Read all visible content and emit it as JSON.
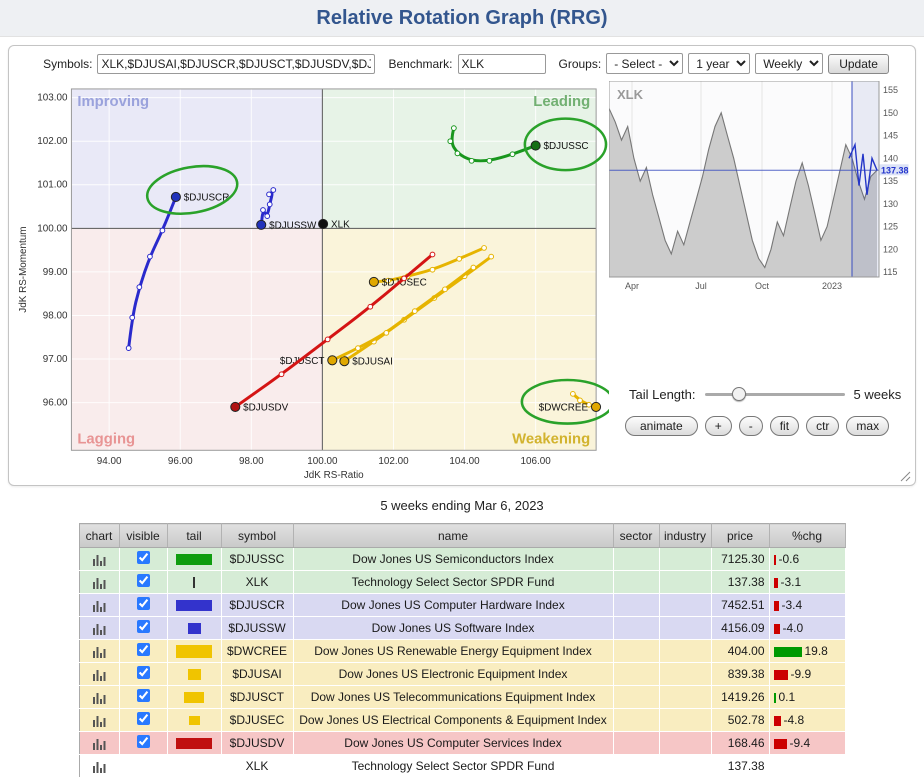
{
  "page": {
    "title": "Relative Rotation Graph (RRG)"
  },
  "toolbar": {
    "symbols_label": "Symbols:",
    "symbols_value": "XLK,$DJUSAI,$DJUSCR,$DJUSCT,$DJUSDV,$DJ",
    "benchmark_label": "Benchmark:",
    "benchmark_value": "XLK",
    "groups_label": "Groups:",
    "groups_value": "- Select -",
    "period_value": "1 year",
    "freq_value": "Weekly",
    "update_label": "Update"
  },
  "controls": {
    "tail_length_label": "Tail Length:",
    "tail_length_value": "5 weeks",
    "tail_slider_pos": 22,
    "buttons": [
      "animate",
      "+",
      "-",
      "fit",
      "ctr",
      "max"
    ]
  },
  "caption": "5 weeks ending Mar 6, 2023",
  "chart_data": [
    {
      "type": "scatter",
      "title": "Relative Rotation Graph",
      "xlabel": "JdK RS-Ratio",
      "ylabel": "JdK RS-Momentum",
      "xlim": [
        92.94,
        107.7
      ],
      "ylim": [
        94.9,
        103.2
      ],
      "x_ticks": [
        94,
        96,
        98,
        100,
        102,
        104,
        106
      ],
      "y_ticks": [
        96,
        97,
        98,
        99,
        100,
        101,
        102,
        103
      ],
      "quadrants": [
        {
          "name": "Improving",
          "bg": "#e9e9f7",
          "label_color": "#9aa2dc"
        },
        {
          "name": "Leading",
          "bg": "#e7f3e7",
          "label_color": "#72b072"
        },
        {
          "name": "Lagging",
          "bg": "#f9ecec",
          "label_color": "#e89494"
        },
        {
          "name": "Weakening",
          "bg": "#faf4da",
          "label_color": "#d2b32e"
        }
      ],
      "series": [
        {
          "symbol": "$DJUSSC",
          "color": "#18961d",
          "dot_color": "#156f15",
          "label_side": "right",
          "points": [
            [
              103.7,
              102.3
            ],
            [
              103.6,
              102.0
            ],
            [
              103.8,
              101.72
            ],
            [
              104.2,
              101.55
            ],
            [
              104.7,
              101.55
            ],
            [
              105.35,
              101.7
            ],
            [
              106.0,
              101.9
            ]
          ]
        },
        {
          "symbol": "XLK",
          "color": "#111111",
          "dot_color": "#111111",
          "label_side": "right",
          "points": [
            [
              100.02,
              100.1
            ]
          ]
        },
        {
          "symbol": "$DJUSCR",
          "color": "#2a2acc",
          "dot_color": "#2233bb",
          "label_side": "right",
          "points": [
            [
              94.55,
              97.25
            ],
            [
              94.65,
              97.95
            ],
            [
              94.85,
              98.65
            ],
            [
              95.15,
              99.35
            ],
            [
              95.5,
              99.95
            ],
            [
              95.88,
              100.72
            ]
          ]
        },
        {
          "symbol": "$DJUSSW",
          "color": "#2a2acc",
          "dot_color": "#2233bb",
          "label_side": "right",
          "points": [
            [
              98.5,
              100.78
            ],
            [
              98.62,
              100.88
            ],
            [
              98.52,
              100.55
            ],
            [
              98.45,
              100.28
            ],
            [
              98.33,
              100.42
            ],
            [
              98.28,
              100.08
            ]
          ]
        },
        {
          "symbol": "$DJUSEC",
          "color": "#e6b400",
          "dot_color": "#e0a800",
          "label_side": "right",
          "points": [
            [
              104.55,
              99.55
            ],
            [
              103.85,
              99.3
            ],
            [
              103.1,
              99.05
            ],
            [
              102.4,
              98.9
            ],
            [
              101.85,
              98.8
            ],
            [
              101.45,
              98.77
            ]
          ]
        },
        {
          "symbol": "$DJUSAI",
          "color": "#e6b400",
          "dot_color": "#e0a800",
          "label_side": "right",
          "points": [
            [
              104.75,
              99.35
            ],
            [
              104.0,
              98.9
            ],
            [
              103.15,
              98.4
            ],
            [
              102.3,
              97.9
            ],
            [
              101.45,
              97.4
            ],
            [
              100.62,
              96.95
            ]
          ]
        },
        {
          "symbol": "$DJUSCT",
          "color": "#e6b400",
          "dot_color": "#e0a800",
          "label_side": "left",
          "points": [
            [
              104.25,
              99.1
            ],
            [
              103.45,
              98.6
            ],
            [
              102.6,
              98.1
            ],
            [
              101.8,
              97.6
            ],
            [
              101.0,
              97.25
            ],
            [
              100.28,
              96.97
            ]
          ]
        },
        {
          "symbol": "$DWCREE",
          "color": "#e6b400",
          "dot_color": "#e0a800",
          "label_side": "left",
          "points": [
            [
              107.05,
              96.2
            ],
            [
              107.25,
              96.05
            ],
            [
              107.5,
              95.95
            ],
            [
              107.7,
              95.9
            ]
          ]
        },
        {
          "symbol": "$DJUSDV",
          "color": "#d41414",
          "dot_color": "#b01212",
          "label_side": "right",
          "points": [
            [
              103.1,
              99.4
            ],
            [
              102.3,
              98.85
            ],
            [
              101.35,
              98.2
            ],
            [
              100.15,
              97.45
            ],
            [
              98.85,
              96.65
            ],
            [
              97.55,
              95.9
            ]
          ]
        }
      ],
      "annotations": [
        {
          "cx": 179,
          "cy": 110,
          "rx": 46,
          "ry": 23,
          "rot": -10
        },
        {
          "cx": 556,
          "cy": 64,
          "rx": 41,
          "ry": 26,
          "rot": 0
        },
        {
          "cx": 558,
          "cy": 324,
          "rx": 46,
          "ry": 22,
          "rot": 0
        }
      ]
    },
    {
      "type": "area",
      "symbol": "XLK",
      "last_price": 137.38,
      "y_ticks": [
        155,
        150,
        145,
        140,
        135,
        130,
        125,
        120,
        115
      ],
      "x_tick_labels": [
        "Apr",
        "Jul",
        "Oct",
        "2023"
      ],
      "x_tick_pos": [
        23,
        92,
        153,
        223
      ],
      "prices": [
        151,
        148,
        144,
        147,
        140,
        135,
        138,
        132,
        127,
        122,
        119,
        124,
        121,
        126,
        131,
        136,
        142,
        147,
        150,
        145,
        140,
        134,
        128,
        122,
        118,
        116,
        120,
        126,
        123,
        129,
        135,
        139,
        134,
        128,
        122,
        125,
        131,
        137,
        143,
        140,
        135,
        131,
        136,
        137.4
      ],
      "blue_points": [
        [
          240,
          140
        ],
        [
          246,
          143
        ],
        [
          250,
          134
        ],
        [
          254,
          141
        ],
        [
          258,
          132
        ],
        [
          263,
          140
        ],
        [
          268,
          137.4
        ]
      ],
      "vline_x": 243
    }
  ],
  "table": {
    "headers": [
      "chart",
      "visible",
      "tail",
      "symbol",
      "name",
      "sector",
      "industry",
      "price",
      "%chg"
    ],
    "rows": [
      {
        "row_color": "#d6ecd6",
        "visible": true,
        "tail": {
          "color": "#0f9d0f",
          "w": 36,
          "h": 11
        },
        "symbol": "$DJUSSC",
        "name": "Dow Jones US Semiconductors Index",
        "sector": "",
        "industry": "",
        "price": "7125.30",
        "chg": "-0.6"
      },
      {
        "row_color": "#d6ecd6",
        "visible": true,
        "tail": {
          "color": "#333333",
          "w": 2,
          "h": 11
        },
        "symbol": "XLK",
        "name": "Technology Select Sector SPDR Fund",
        "sector": "",
        "industry": "",
        "price": "137.38",
        "chg": "-3.1"
      },
      {
        "row_color": "#d9d9f2",
        "visible": true,
        "tail": {
          "color": "#3333cc",
          "w": 36,
          "h": 11
        },
        "symbol": "$DJUSCR",
        "name": "Dow Jones US Computer Hardware Index",
        "sector": "",
        "industry": "",
        "price": "7452.51",
        "chg": "-3.4"
      },
      {
        "row_color": "#d9d9f2",
        "visible": true,
        "tail": {
          "color": "#3333cc",
          "w": 13,
          "h": 11
        },
        "symbol": "$DJUSSW",
        "name": "Dow Jones US Software Index",
        "sector": "",
        "industry": "",
        "price": "4156.09",
        "chg": "-4.0"
      },
      {
        "row_color": "#f9edc0",
        "visible": true,
        "tail": {
          "color": "#f0c400",
          "w": 36,
          "h": 13
        },
        "symbol": "$DWCREE",
        "name": "Dow Jones US Renewable Energy Equipment Index",
        "sector": "",
        "industry": "",
        "price": "404.00",
        "chg": "19.8"
      },
      {
        "row_color": "#f9edc0",
        "visible": true,
        "tail": {
          "color": "#f0c400",
          "w": 13,
          "h": 11
        },
        "symbol": "$DJUSAI",
        "name": "Dow Jones US Electronic Equipment Index",
        "sector": "",
        "industry": "",
        "price": "839.38",
        "chg": "-9.9"
      },
      {
        "row_color": "#f9edc0",
        "visible": true,
        "tail": {
          "color": "#f0c400",
          "w": 20,
          "h": 11
        },
        "symbol": "$DJUSCT",
        "name": "Dow Jones US Telecommunications Equipment Index",
        "sector": "",
        "industry": "",
        "price": "1419.26",
        "chg": "0.1"
      },
      {
        "row_color": "#f9edc0",
        "visible": true,
        "tail": {
          "color": "#f0c400",
          "w": 11,
          "h": 9
        },
        "symbol": "$DJUSEC",
        "name": "Dow Jones US Electrical Components & Equipment Index",
        "sector": "",
        "industry": "",
        "price": "502.78",
        "chg": "-4.8"
      },
      {
        "row_color": "#f6c6c6",
        "visible": true,
        "tail": {
          "color": "#c01010",
          "w": 36,
          "h": 11
        },
        "symbol": "$DJUSDV",
        "name": "Dow Jones US Computer Services Index",
        "sector": "",
        "industry": "",
        "price": "168.46",
        "chg": "-9.4"
      },
      {
        "row_color": "#ffffff",
        "visible": false,
        "tail": null,
        "symbol": "XLK",
        "name": "Technology Select Sector SPDR Fund",
        "sector": "",
        "industry": "",
        "price": "137.38",
        "chg": ""
      }
    ]
  }
}
